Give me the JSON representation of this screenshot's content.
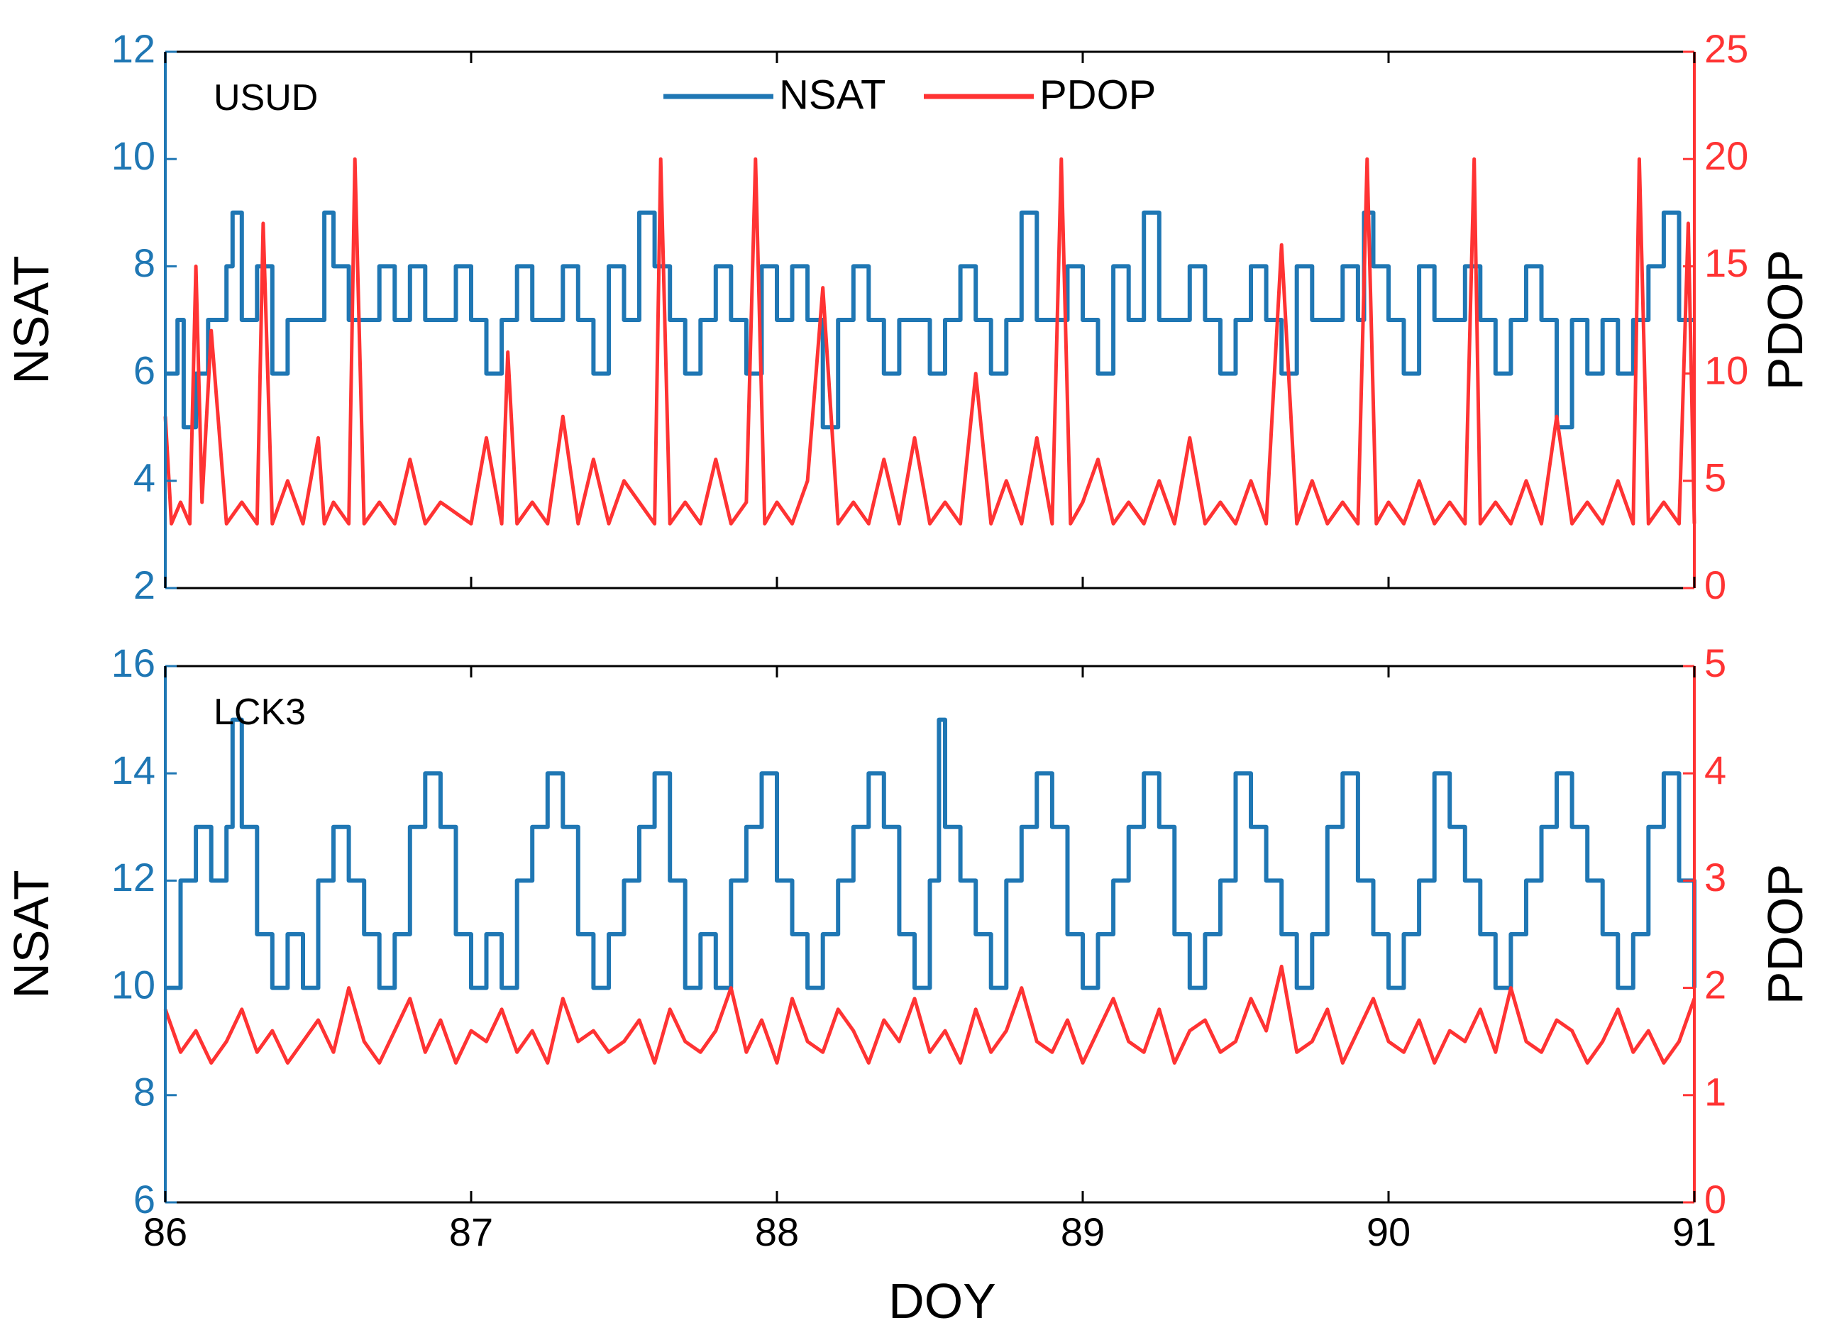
{
  "colors": {
    "nsat": "#1f77b4",
    "pdop": "#ff3333",
    "axis": "#000000"
  },
  "legend": {
    "nsat_label": "NSAT",
    "pdop_label": "PDOP"
  },
  "chart_data": [
    {
      "type": "line",
      "station": "USUD",
      "xlabel": "",
      "ylabel_left": "NSAT",
      "ylabel_right": "PDOP",
      "xlim": [
        86,
        91
      ],
      "xticks": [
        "86",
        "87",
        "88",
        "89",
        "90",
        "91"
      ],
      "ylim_left": [
        2,
        12
      ],
      "yticks_left": [
        "2",
        "4",
        "6",
        "8",
        "10",
        "12"
      ],
      "ylim_right": [
        0,
        25
      ],
      "yticks_right": [
        "0",
        "5",
        "10",
        "15",
        "20",
        "25"
      ],
      "series": [
        {
          "name": "NSAT",
          "axis": "left",
          "x": [
            86.0,
            86.04,
            86.06,
            86.1,
            86.14,
            86.2,
            86.22,
            86.25,
            86.3,
            86.35,
            86.4,
            86.5,
            86.52,
            86.55,
            86.6,
            86.7,
            86.75,
            86.8,
            86.85,
            86.9,
            86.95,
            87.0,
            87.05,
            87.1,
            87.15,
            87.2,
            87.25,
            87.3,
            87.35,
            87.4,
            87.45,
            87.5,
            87.55,
            87.6,
            87.65,
            87.7,
            87.75,
            87.8,
            87.85,
            87.9,
            87.95,
            88.0,
            88.05,
            88.1,
            88.15,
            88.2,
            88.25,
            88.3,
            88.35,
            88.4,
            88.45,
            88.5,
            88.55,
            88.6,
            88.65,
            88.7,
            88.75,
            88.8,
            88.85,
            88.9,
            88.95,
            89.0,
            89.05,
            89.1,
            89.15,
            89.2,
            89.25,
            89.3,
            89.35,
            89.4,
            89.45,
            89.5,
            89.55,
            89.6,
            89.65,
            89.7,
            89.75,
            89.8,
            89.85,
            89.9,
            89.92,
            89.95,
            90.0,
            90.05,
            90.1,
            90.15,
            90.2,
            90.25,
            90.3,
            90.35,
            90.4,
            90.45,
            90.5,
            90.55,
            90.6,
            90.65,
            90.7,
            90.75,
            90.8,
            90.85,
            90.9,
            90.95,
            91.0
          ],
          "values": [
            6,
            7,
            5,
            6,
            7,
            8,
            9,
            7,
            8,
            6,
            7,
            7,
            9,
            8,
            7,
            8,
            7,
            8,
            7,
            7,
            8,
            7,
            6,
            7,
            8,
            7,
            7,
            8,
            7,
            6,
            8,
            7,
            9,
            8,
            7,
            6,
            7,
            8,
            7,
            6,
            8,
            7,
            8,
            7,
            5,
            7,
            8,
            7,
            6,
            7,
            7,
            6,
            7,
            8,
            7,
            6,
            7,
            9,
            7,
            7,
            8,
            7,
            6,
            8,
            7,
            9,
            7,
            7,
            8,
            7,
            6,
            7,
            8,
            7,
            6,
            8,
            7,
            7,
            8,
            7,
            9,
            8,
            7,
            6,
            8,
            7,
            7,
            8,
            7,
            6,
            7,
            8,
            7,
            5,
            7,
            6,
            7,
            6,
            7,
            8,
            9,
            7,
            7
          ]
        },
        {
          "name": "PDOP",
          "axis": "right",
          "x": [
            86.0,
            86.02,
            86.05,
            86.08,
            86.1,
            86.12,
            86.15,
            86.2,
            86.25,
            86.3,
            86.32,
            86.35,
            86.4,
            86.45,
            86.5,
            86.52,
            86.55,
            86.6,
            86.62,
            86.65,
            86.7,
            86.75,
            86.8,
            86.85,
            86.9,
            87.0,
            87.05,
            87.1,
            87.12,
            87.15,
            87.2,
            87.25,
            87.3,
            87.35,
            87.4,
            87.45,
            87.5,
            87.55,
            87.6,
            87.62,
            87.65,
            87.7,
            87.75,
            87.8,
            87.85,
            87.9,
            87.93,
            87.96,
            88.0,
            88.05,
            88.1,
            88.15,
            88.2,
            88.25,
            88.3,
            88.35,
            88.4,
            88.45,
            88.5,
            88.55,
            88.6,
            88.65,
            88.7,
            88.75,
            88.8,
            88.85,
            88.9,
            88.93,
            88.96,
            89.0,
            89.05,
            89.1,
            89.15,
            89.2,
            89.25,
            89.3,
            89.35,
            89.4,
            89.45,
            89.5,
            89.55,
            89.6,
            89.65,
            89.7,
            89.75,
            89.8,
            89.85,
            89.9,
            89.93,
            89.96,
            90.0,
            90.05,
            90.1,
            90.15,
            90.2,
            90.25,
            90.28,
            90.3,
            90.35,
            90.4,
            90.45,
            90.5,
            90.55,
            90.6,
            90.65,
            90.7,
            90.75,
            90.8,
            90.82,
            90.85,
            90.9,
            90.95,
            90.98,
            91.0
          ],
          "values": [
            8,
            3,
            4,
            3,
            15,
            4,
            12,
            3,
            4,
            3,
            17,
            3,
            5,
            3,
            7,
            3,
            4,
            3,
            20,
            3,
            4,
            3,
            6,
            3,
            4,
            3,
            7,
            3,
            11,
            3,
            4,
            3,
            8,
            3,
            6,
            3,
            5,
            4,
            3,
            20,
            3,
            4,
            3,
            6,
            3,
            4,
            20,
            3,
            4,
            3,
            5,
            14,
            3,
            4,
            3,
            6,
            3,
            7,
            3,
            4,
            3,
            10,
            3,
            5,
            3,
            7,
            3,
            20,
            3,
            4,
            6,
            3,
            4,
            3,
            5,
            3,
            7,
            3,
            4,
            3,
            5,
            3,
            16,
            3,
            5,
            3,
            4,
            3,
            20,
            3,
            4,
            3,
            5,
            3,
            4,
            3,
            20,
            3,
            4,
            3,
            5,
            3,
            8,
            3,
            4,
            3,
            5,
            3,
            20,
            3,
            4,
            3,
            17,
            3
          ]
        }
      ]
    },
    {
      "type": "line",
      "station": "LCK3",
      "xlabel": "DOY",
      "ylabel_left": "NSAT",
      "ylabel_right": "PDOP",
      "xlim": [
        86,
        91
      ],
      "xticks": [
        "86",
        "87",
        "88",
        "89",
        "90",
        "91"
      ],
      "ylim_left": [
        6,
        16
      ],
      "yticks_left": [
        "6",
        "8",
        "10",
        "12",
        "14",
        "16"
      ],
      "ylim_right": [
        0,
        5
      ],
      "yticks_right": [
        "0",
        "1",
        "2",
        "3",
        "4",
        "5"
      ],
      "series": [
        {
          "name": "NSAT",
          "axis": "left",
          "x": [
            86.0,
            86.05,
            86.1,
            86.15,
            86.2,
            86.22,
            86.25,
            86.3,
            86.35,
            86.4,
            86.45,
            86.5,
            86.55,
            86.6,
            86.65,
            86.7,
            86.75,
            86.8,
            86.85,
            86.9,
            86.95,
            87.0,
            87.05,
            87.1,
            87.15,
            87.2,
            87.25,
            87.3,
            87.35,
            87.4,
            87.45,
            87.5,
            87.55,
            87.6,
            87.65,
            87.7,
            87.75,
            87.8,
            87.85,
            87.9,
            87.95,
            88.0,
            88.05,
            88.1,
            88.15,
            88.2,
            88.25,
            88.3,
            88.35,
            88.4,
            88.45,
            88.5,
            88.53,
            88.55,
            88.6,
            88.65,
            88.7,
            88.75,
            88.8,
            88.85,
            88.9,
            88.95,
            89.0,
            89.05,
            89.1,
            89.15,
            89.2,
            89.25,
            89.3,
            89.35,
            89.4,
            89.45,
            89.5,
            89.55,
            89.6,
            89.65,
            89.7,
            89.75,
            89.8,
            89.85,
            89.9,
            89.95,
            90.0,
            90.05,
            90.1,
            90.15,
            90.2,
            90.25,
            90.3,
            90.35,
            90.4,
            90.45,
            90.5,
            90.55,
            90.6,
            90.65,
            90.7,
            90.75,
            90.8,
            90.85,
            90.9,
            90.95,
            91.0
          ],
          "values": [
            10,
            12,
            13,
            12,
            13,
            15,
            13,
            11,
            10,
            11,
            10,
            12,
            13,
            12,
            11,
            10,
            11,
            13,
            14,
            13,
            11,
            10,
            11,
            10,
            12,
            13,
            14,
            13,
            11,
            10,
            11,
            12,
            13,
            14,
            12,
            10,
            11,
            10,
            12,
            13,
            14,
            12,
            11,
            10,
            11,
            12,
            13,
            14,
            13,
            11,
            10,
            12,
            15,
            13,
            12,
            11,
            10,
            12,
            13,
            14,
            13,
            11,
            10,
            11,
            12,
            13,
            14,
            13,
            11,
            10,
            11,
            12,
            14,
            13,
            12,
            11,
            10,
            11,
            13,
            14,
            12,
            11,
            10,
            11,
            12,
            14,
            13,
            12,
            11,
            10,
            11,
            12,
            13,
            14,
            13,
            12,
            11,
            10,
            11,
            13,
            14,
            12,
            10
          ]
        },
        {
          "name": "PDOP",
          "axis": "right",
          "x": [
            86.0,
            86.05,
            86.1,
            86.15,
            86.2,
            86.25,
            86.3,
            86.35,
            86.4,
            86.45,
            86.5,
            86.55,
            86.6,
            86.65,
            86.7,
            86.75,
            86.8,
            86.85,
            86.9,
            86.95,
            87.0,
            87.05,
            87.1,
            87.15,
            87.2,
            87.25,
            87.3,
            87.35,
            87.4,
            87.45,
            87.5,
            87.55,
            87.6,
            87.65,
            87.7,
            87.75,
            87.8,
            87.85,
            87.9,
            87.95,
            88.0,
            88.05,
            88.1,
            88.15,
            88.2,
            88.25,
            88.3,
            88.35,
            88.4,
            88.45,
            88.5,
            88.55,
            88.6,
            88.65,
            88.7,
            88.75,
            88.8,
            88.85,
            88.9,
            88.95,
            89.0,
            89.05,
            89.1,
            89.15,
            89.2,
            89.25,
            89.3,
            89.35,
            89.4,
            89.45,
            89.5,
            89.55,
            89.6,
            89.65,
            89.7,
            89.75,
            89.8,
            89.85,
            89.9,
            89.95,
            90.0,
            90.05,
            90.1,
            90.15,
            90.2,
            90.25,
            90.3,
            90.35,
            90.4,
            90.45,
            90.5,
            90.55,
            90.6,
            90.65,
            90.7,
            90.75,
            90.8,
            90.85,
            90.9,
            90.95,
            91.0
          ],
          "values": [
            1.8,
            1.4,
            1.6,
            1.3,
            1.5,
            1.8,
            1.4,
            1.6,
            1.3,
            1.5,
            1.7,
            1.4,
            2.0,
            1.5,
            1.3,
            1.6,
            1.9,
            1.4,
            1.7,
            1.3,
            1.6,
            1.5,
            1.8,
            1.4,
            1.6,
            1.3,
            1.9,
            1.5,
            1.6,
            1.4,
            1.5,
            1.7,
            1.3,
            1.8,
            1.5,
            1.4,
            1.6,
            2.0,
            1.4,
            1.7,
            1.3,
            1.9,
            1.5,
            1.4,
            1.8,
            1.6,
            1.3,
            1.7,
            1.5,
            1.9,
            1.4,
            1.6,
            1.3,
            1.8,
            1.4,
            1.6,
            2.0,
            1.5,
            1.4,
            1.7,
            1.3,
            1.6,
            1.9,
            1.5,
            1.4,
            1.8,
            1.3,
            1.6,
            1.7,
            1.4,
            1.5,
            1.9,
            1.6,
            2.2,
            1.4,
            1.5,
            1.8,
            1.3,
            1.6,
            1.9,
            1.5,
            1.4,
            1.7,
            1.3,
            1.6,
            1.5,
            1.8,
            1.4,
            2.0,
            1.5,
            1.4,
            1.7,
            1.6,
            1.3,
            1.5,
            1.8,
            1.4,
            1.6,
            1.3,
            1.5,
            1.9
          ]
        }
      ]
    }
  ]
}
